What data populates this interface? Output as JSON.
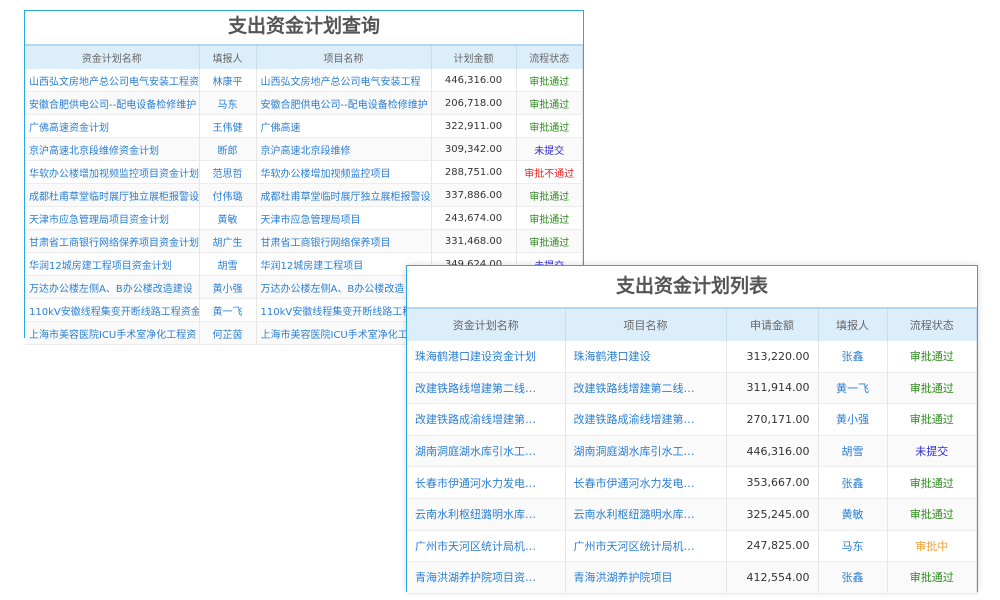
{
  "query_panel": {
    "title": "支出资金计划查询",
    "columns": [
      "资金计划名称",
      "填报人",
      "项目名称",
      "计划金额",
      "流程状态"
    ],
    "rows": [
      {
        "plan": "山西弘文房地产总公司电气安装工程资",
        "reporter": "林康平",
        "project": "山西弘文房地产总公司电气安装工程",
        "amount": "446,316.00",
        "status": "审批通过",
        "status_color": "#2e8b1e"
      },
      {
        "plan": "安徽合肥供电公司--配电设备检修维护",
        "reporter": "马东",
        "project": "安徽合肥供电公司--配电设备检修维护",
        "amount": "206,718.00",
        "status": "审批通过",
        "status_color": "#2e8b1e"
      },
      {
        "plan": "广佛高速资金计划",
        "reporter": "王伟健",
        "project": "广佛高速",
        "amount": "322,911.00",
        "status": "审批通过",
        "status_color": "#2e8b1e"
      },
      {
        "plan": "京沪高速北京段维修资金计划",
        "reporter": "断郎",
        "project": "京沪高速北京段维修",
        "amount": "309,342.00",
        "status": "未提交",
        "status_color": "#2a2ad8"
      },
      {
        "plan": "华软办公楼增加视频监控项目资金计划",
        "reporter": "范思哲",
        "project": "华软办公楼增加视频监控项目",
        "amount": "288,751.00",
        "status": "审批不通过",
        "status_color": "#e82020"
      },
      {
        "plan": "成都杜甫草堂临时展厅独立展柜报警设",
        "reporter": "付伟璐",
        "project": "成都杜甫草堂临时展厅独立展柜报警设",
        "amount": "337,886.00",
        "status": "审批通过",
        "status_color": "#2e8b1e"
      },
      {
        "plan": "天津市应急管理局项目资金计划",
        "reporter": "黄敏",
        "project": "天津市应急管理局项目",
        "amount": "243,674.00",
        "status": "审批通过",
        "status_color": "#2e8b1e"
      },
      {
        "plan": "甘肃省工商银行网络保养项目资金计划",
        "reporter": "胡广生",
        "project": "甘肃省工商银行网络保养项目",
        "amount": "331,468.00",
        "status": "审批通过",
        "status_color": "#2e8b1e"
      },
      {
        "plan": "华润12城房建工程项目资金计划",
        "reporter": "胡雪",
        "project": "华润12城房建工程项目",
        "amount": "349,624.00",
        "status": "未提交",
        "status_color": "#2a2ad8"
      },
      {
        "plan": "万达办公楼左侧A、B办公楼改造建设",
        "reporter": "黄小强",
        "project": "万达办公楼左侧A、B办公楼改造",
        "amount": "",
        "status": "",
        "status_color": "#2e8b1e"
      },
      {
        "plan": "110kV安徽线程集变开断线路工程资金",
        "reporter": "黄一飞",
        "project": "110kV安徽线程集变开断线路工程",
        "amount": "",
        "status": "",
        "status_color": "#2e8b1e"
      },
      {
        "plan": "上海市美容医院ICU手术室净化工程资",
        "reporter": "何芷茵",
        "project": "上海市美容医院ICU手术室净化工程",
        "amount": "",
        "status": "",
        "status_color": "#2e8b1e"
      }
    ]
  },
  "list_panel": {
    "title": "支出资金计划列表",
    "columns": [
      "资金计划名称",
      "项目名称",
      "申请金额",
      "填报人",
      "流程状态"
    ],
    "rows": [
      {
        "plan": "珠海鹤港口建设资金计划",
        "project": "珠海鹤港口建设",
        "amount": "313,220.00",
        "reporter": "张鑫",
        "status": "审批通过",
        "status_color": "#2e8b1e"
      },
      {
        "plan": "改建铁路线增建第二线…",
        "project": "改建铁路线增建第二线…",
        "amount": "311,914.00",
        "reporter": "黄一飞",
        "status": "审批通过",
        "status_color": "#2e8b1e"
      },
      {
        "plan": "改建铁路成渝线增建第…",
        "project": "改建铁路成渝线增建第…",
        "amount": "270,171.00",
        "reporter": "黄小强",
        "status": "审批通过",
        "status_color": "#2e8b1e"
      },
      {
        "plan": "湖南洞庭湖水库引水工…",
        "project": "湖南洞庭湖水库引水工…",
        "amount": "446,316.00",
        "reporter": "胡雪",
        "status": "未提交",
        "status_color": "#2a2ad8"
      },
      {
        "plan": "长春市伊通河水力发电…",
        "project": "长春市伊通河水力发电…",
        "amount": "353,667.00",
        "reporter": "张鑫",
        "status": "审批通过",
        "status_color": "#2e8b1e"
      },
      {
        "plan": "云南水利枢纽潞明水库…",
        "project": "云南水利枢纽潞明水库…",
        "amount": "325,245.00",
        "reporter": "黄敏",
        "status": "审批通过",
        "status_color": "#2e8b1e"
      },
      {
        "plan": "广州市天河区统计局机…",
        "project": "广州市天河区统计局机…",
        "amount": "247,825.00",
        "reporter": "马东",
        "status": "审批中",
        "status_color": "#f0a030"
      },
      {
        "plan": "青海洪湖养护院项目资…",
        "project": "青海洪湖养护院项目",
        "amount": "412,554.00",
        "reporter": "张鑫",
        "status": "审批通过",
        "status_color": "#2e8b1e"
      }
    ]
  }
}
